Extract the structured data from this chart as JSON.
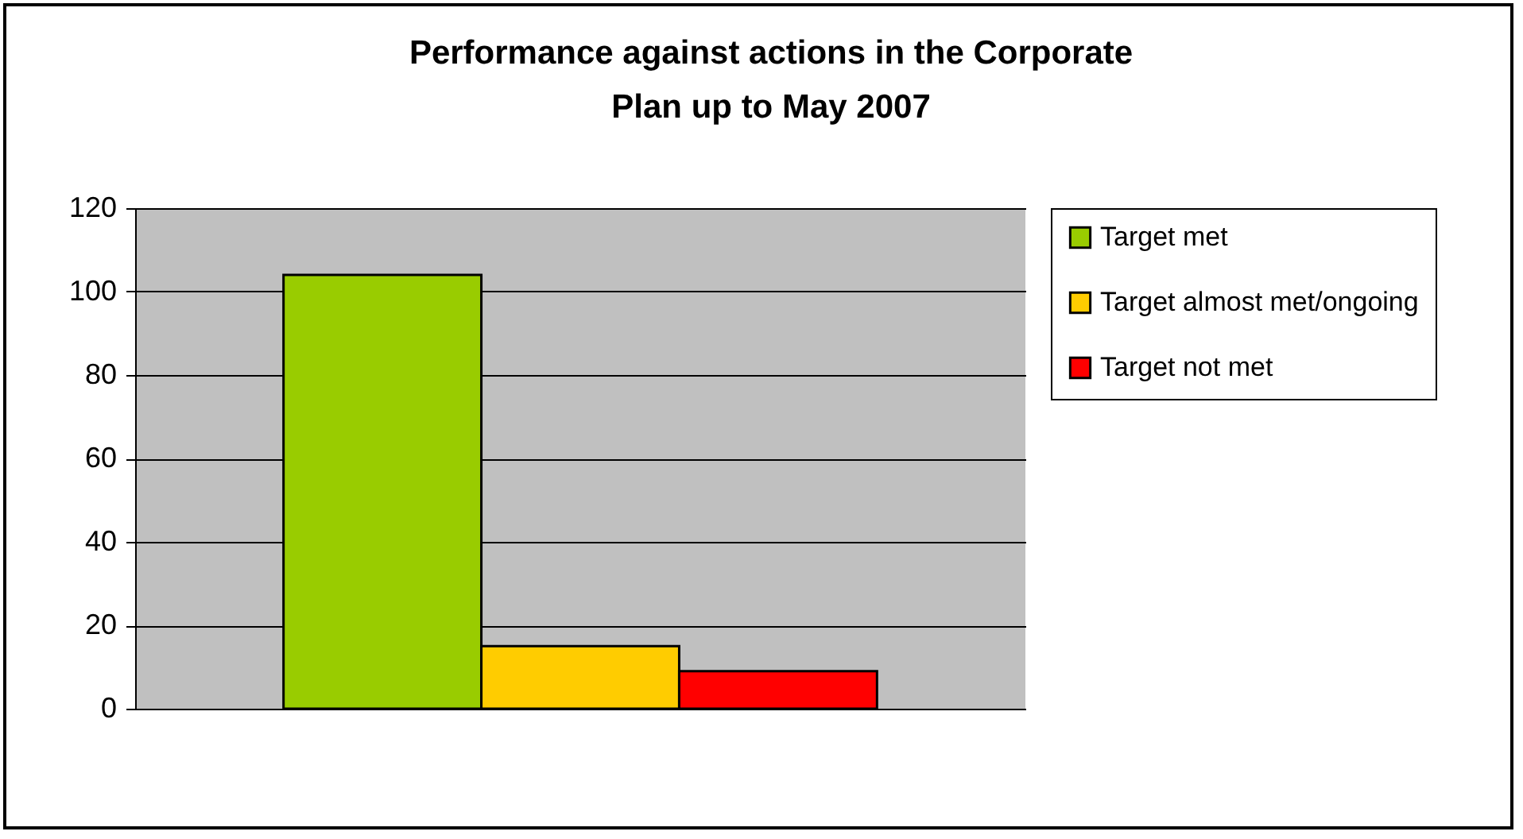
{
  "chart_data": {
    "type": "bar",
    "title": "Performance against actions in the Corporate Plan up to May 2007",
    "categories": [
      null
    ],
    "series": [
      {
        "name": "Target met",
        "color": "#99cc00",
        "values": [
          104
        ]
      },
      {
        "name": "Target almost met/ongoing",
        "color": "#ffcc00",
        "values": [
          15
        ]
      },
      {
        "name": "Target not met",
        "color": "#ff0000",
        "values": [
          9
        ]
      }
    ],
    "ylim": [
      0,
      120
    ],
    "yticks": [
      0,
      20,
      40,
      60,
      80,
      100,
      120
    ],
    "grid": "y",
    "legend": "right"
  }
}
